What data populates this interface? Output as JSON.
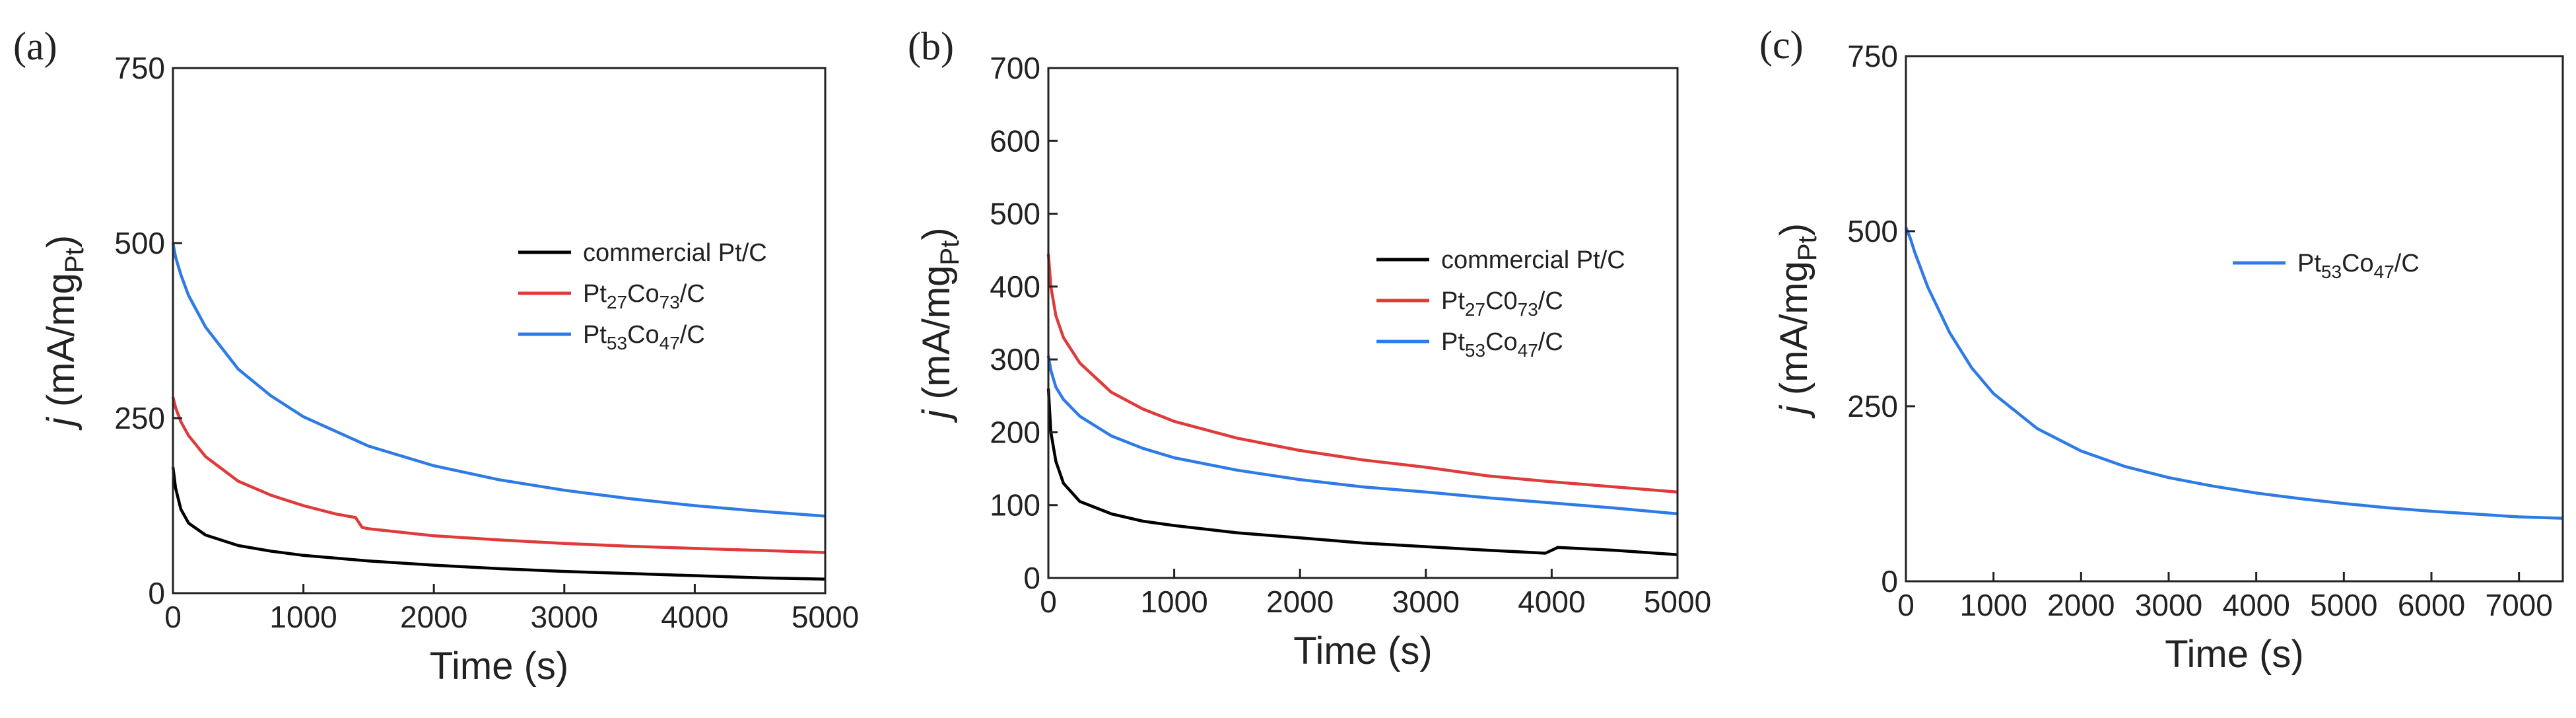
{
  "figure": {
    "chart_data": [
      {
        "type": "line",
        "panel_label": "(a)",
        "xlabel": "Time (s)",
        "ylabel": {
          "italic": "j",
          "base": " (mA/mg",
          "sub": "Pt",
          "close": ")"
        },
        "xlim": [
          0,
          5000
        ],
        "ylim": [
          0,
          750
        ],
        "xticks": [
          "0",
          "1000",
          "2000",
          "3000",
          "4000",
          "5000"
        ],
        "yticks": [
          "0",
          "250",
          "500",
          "750"
        ],
        "legend_position": "center-right",
        "series": [
          {
            "name": "commercial Pt/C",
            "legend": {
              "parts": [
                [
                  "commercial Pt/C",
                  ""
                ]
              ]
            },
            "color": "#000000",
            "x": [
              0,
              20,
              60,
              120,
              250,
              500,
              750,
              1000,
              1500,
              2000,
              2500,
              3000,
              3500,
              4000,
              4500,
              5000
            ],
            "y": [
              180,
              150,
              120,
              100,
              83,
              68,
              60,
              54,
              46,
              40,
              35,
              31,
              28,
              25,
              22,
              20
            ]
          },
          {
            "name": "Pt27Co73/C",
            "legend": {
              "parts": [
                [
                  "Pt",
                  ""
                ],
                [
                  "27",
                  "sub"
                ],
                [
                  "Co",
                  ""
                ],
                [
                  "73",
                  "sub"
                ],
                [
                  "/C",
                  ""
                ]
              ]
            },
            "color": "#e03b3b",
            "x": [
              0,
              20,
              60,
              120,
              250,
              500,
              750,
              1000,
              1250,
              1400,
              1450,
              1500,
              2000,
              2500,
              3000,
              3500,
              4000,
              4500,
              5000
            ],
            "y": [
              280,
              265,
              245,
              225,
              195,
              160,
              140,
              125,
              113,
              108,
              94,
              92,
              82,
              76,
              71,
              67,
              64,
              61,
              58
            ]
          },
          {
            "name": "Pt53Co47/C",
            "legend": {
              "parts": [
                [
                  "Pt",
                  ""
                ],
                [
                  "53",
                  "sub"
                ],
                [
                  "Co",
                  ""
                ],
                [
                  "47",
                  "sub"
                ],
                [
                  "/C",
                  ""
                ]
              ]
            },
            "color": "#2f7be6",
            "x": [
              0,
              20,
              60,
              120,
              250,
              500,
              750,
              1000,
              1500,
              2000,
              2500,
              3000,
              3500,
              4000,
              4500,
              5000
            ],
            "y": [
              500,
              480,
              455,
              425,
              380,
              320,
              282,
              252,
              210,
              182,
              162,
              147,
              135,
              125,
              117,
              110
            ]
          }
        ]
      },
      {
        "type": "line",
        "panel_label": "(b)",
        "xlabel": "Time (s)",
        "ylabel": {
          "italic": "j",
          "base": " (mA/mg",
          "sub": "Pt",
          "close": ")"
        },
        "xlim": [
          0,
          5000
        ],
        "ylim": [
          0,
          700
        ],
        "xticks": [
          "0",
          "1000",
          "2000",
          "3000",
          "4000",
          "5000"
        ],
        "yticks": [
          "0",
          "100",
          "200",
          "300",
          "400",
          "500",
          "600",
          "700"
        ],
        "legend_position": "center-right",
        "series": [
          {
            "name": "commercial Pt/C",
            "legend": {
              "parts": [
                [
                  "commercial Pt/C",
                  ""
                ]
              ]
            },
            "color": "#000000",
            "x": [
              0,
              20,
              60,
              120,
              250,
              500,
              750,
              1000,
              1500,
              2000,
              2500,
              3000,
              3500,
              3950,
              4050,
              4500,
              5000
            ],
            "y": [
              260,
              200,
              160,
              130,
              105,
              88,
              78,
              72,
              62,
              55,
              48,
              43,
              38,
              34,
              42,
              38,
              32
            ]
          },
          {
            "name": "Pt27C073/C",
            "legend": {
              "parts": [
                [
                  "Pt",
                  ""
                ],
                [
                  "27",
                  "sub"
                ],
                [
                  "C0",
                  ""
                ],
                [
                  "73",
                  "sub"
                ],
                [
                  "/C",
                  ""
                ]
              ]
            },
            "color": "#e03b3b",
            "x": [
              0,
              20,
              60,
              120,
              250,
              500,
              750,
              1000,
              1500,
              2000,
              2500,
              3000,
              3500,
              4000,
              4500,
              5000
            ],
            "y": [
              445,
              400,
              360,
              330,
              295,
              255,
              232,
              215,
              192,
              175,
              162,
              152,
              140,
              132,
              125,
              118
            ]
          },
          {
            "name": "Pt53Co47/C",
            "legend": {
              "parts": [
                [
                  "Pt",
                  ""
                ],
                [
                  "53",
                  "sub"
                ],
                [
                  "Co",
                  ""
                ],
                [
                  "47",
                  "sub"
                ],
                [
                  "/C",
                  ""
                ]
              ]
            },
            "color": "#2f7be6",
            "x": [
              0,
              20,
              60,
              120,
              250,
              500,
              750,
              1000,
              1500,
              2000,
              2500,
              3000,
              3500,
              4000,
              4500,
              5000
            ],
            "y": [
              305,
              285,
              262,
              245,
              222,
              195,
              178,
              165,
              148,
              135,
              125,
              118,
              110,
              103,
              96,
              88
            ]
          }
        ]
      },
      {
        "type": "line",
        "panel_label": "(c)",
        "xlabel": "Time (s)",
        "ylabel": {
          "italic": "j",
          "base": " (mA/mg",
          "sub": "Pt",
          "close": ")"
        },
        "xlim": [
          0,
          7500
        ],
        "ylim": [
          0,
          750
        ],
        "xticks": [
          "0",
          "1000",
          "2000",
          "3000",
          "4000",
          "5000",
          "6000",
          "7000"
        ],
        "yticks": [
          "0",
          "250",
          "500",
          "750"
        ],
        "legend_position": "upper-right",
        "series": [
          {
            "name": "Pt53Co47/C",
            "legend": {
              "parts": [
                [
                  "Pt",
                  ""
                ],
                [
                  "53",
                  "sub"
                ],
                [
                  "Co",
                  ""
                ],
                [
                  "47",
                  "sub"
                ],
                [
                  "/C",
                  ""
                ]
              ]
            },
            "color": "#2f7be6",
            "x": [
              0,
              50,
              100,
              250,
              500,
              750,
              1000,
              1500,
              2000,
              2500,
              3000,
              3500,
              4000,
              4500,
              5000,
              5500,
              6000,
              6500,
              7000,
              7500
            ],
            "y": [
              505,
              490,
              470,
              420,
              355,
              305,
              268,
              218,
              186,
              164,
              148,
              136,
              126,
              118,
              111,
              105,
              100,
              96,
              92,
              90
            ]
          }
        ]
      }
    ]
  }
}
